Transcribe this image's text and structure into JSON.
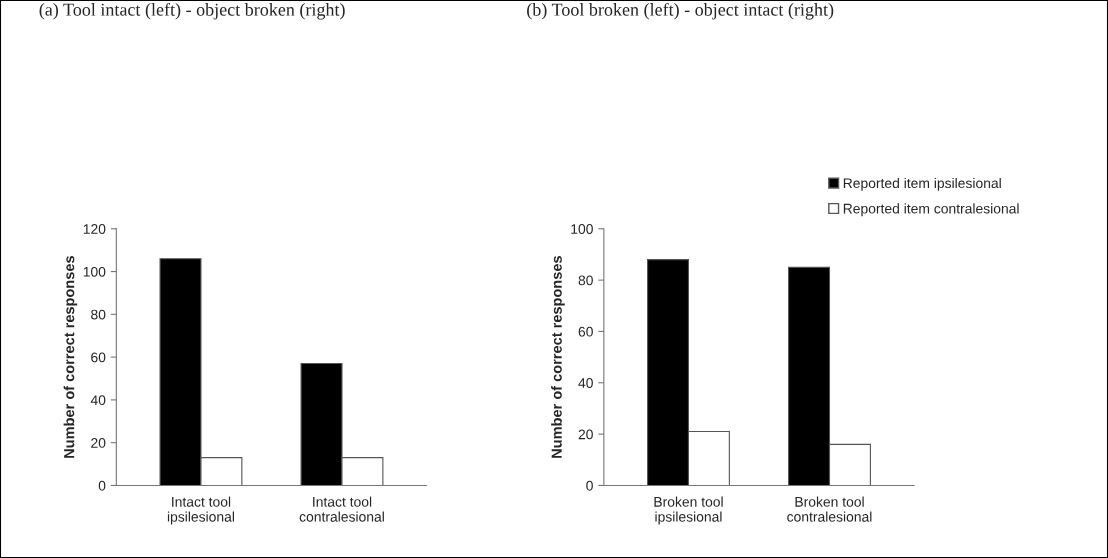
{
  "chart_data": [
    {
      "type": "bar",
      "title": "(a) Tool intact (left) - object broken (right)",
      "ylabel": "Number of correct responses",
      "categories": [
        "Intact tool\nipsilesional",
        "Intact tool\ncontralesional"
      ],
      "series": [
        {
          "color": "#000000",
          "values": [
            106,
            57
          ]
        },
        {
          "color": "#ffffff",
          "values": [
            13,
            13
          ]
        }
      ],
      "ylim": [
        0,
        120
      ],
      "yticks": [
        0,
        20,
        40,
        60,
        80,
        100,
        120
      ],
      "grid": false
    },
    {
      "type": "bar",
      "title": "(b) Tool broken (left) - object intact (right)",
      "ylabel": "Number of correct responses",
      "categories": [
        "Broken tool\nipsilesional",
        "Broken tool\ncontralesional"
      ],
      "series": [
        {
          "name": "Reported item ipsilesional",
          "color": "#000000",
          "values": [
            88,
            85
          ]
        },
        {
          "name": "Reported item contralesional",
          "color": "#ffffff",
          "values": [
            21,
            16
          ]
        }
      ],
      "ylim": [
        0,
        100
      ],
      "yticks": [
        0,
        20,
        40,
        60,
        80,
        100
      ],
      "grid": false,
      "legend": "top right"
    }
  ]
}
